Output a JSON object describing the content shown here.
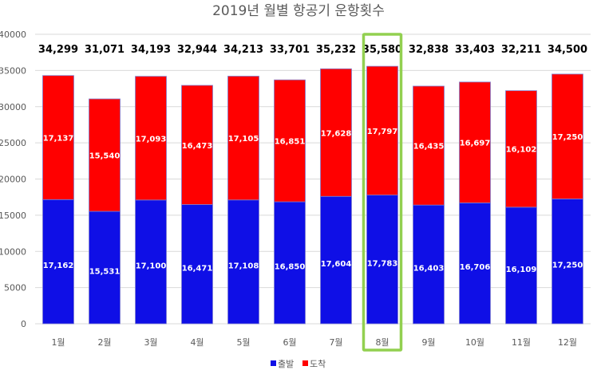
{
  "chart_data": {
    "type": "bar",
    "stacked": true,
    "title": "2019년 월별 항공기 운항횟수",
    "categories": [
      "1월",
      "2월",
      "3월",
      "4월",
      "5월",
      "6월",
      "7월",
      "8월",
      "9월",
      "10월",
      "11월",
      "12월"
    ],
    "series": [
      {
        "name": "출발",
        "color": "#0f0fe6",
        "values": [
          17162,
          15531,
          17100,
          16471,
          17108,
          16850,
          17604,
          17783,
          16403,
          16706,
          16109,
          17250
        ],
        "labels": [
          "17,162",
          "15,531",
          "17,100",
          "16,471",
          "17,108",
          "16,850",
          "17,604",
          "17,783",
          "16,403",
          "16,706",
          "16,109",
          "17,250"
        ]
      },
      {
        "name": "도착",
        "color": "#ff0000",
        "values": [
          17137,
          15540,
          17093,
          16473,
          17105,
          16851,
          17628,
          17797,
          16435,
          16697,
          16102,
          17250
        ],
        "labels": [
          "17,137",
          "15,540",
          "17,093",
          "16,473",
          "17,105",
          "16,851",
          "17,628",
          "17,797",
          "16,435",
          "16,697",
          "16,102",
          "17,250"
        ]
      }
    ],
    "totals": [
      34299,
      31071,
      34193,
      32944,
      34213,
      33701,
      35232,
      35580,
      32838,
      33403,
      32211,
      34500
    ],
    "total_labels": [
      "34,299",
      "31,071",
      "34,193",
      "32,944",
      "34,213",
      "33,701",
      "35,232",
      "35,580",
      "32,838",
      "33,403",
      "32,211",
      "34,500"
    ],
    "ylim": [
      0,
      40000
    ],
    "yticks": [
      0,
      5000,
      10000,
      15000,
      20000,
      25000,
      30000,
      35000,
      40000
    ],
    "ytick_labels": [
      "0",
      "5000",
      "10000",
      "15000",
      "20000",
      "25000",
      "30000",
      "35000",
      "40000"
    ],
    "grid": true,
    "legend_position": "bottom",
    "highlight": {
      "category": "8월",
      "color": "#92d050"
    }
  }
}
